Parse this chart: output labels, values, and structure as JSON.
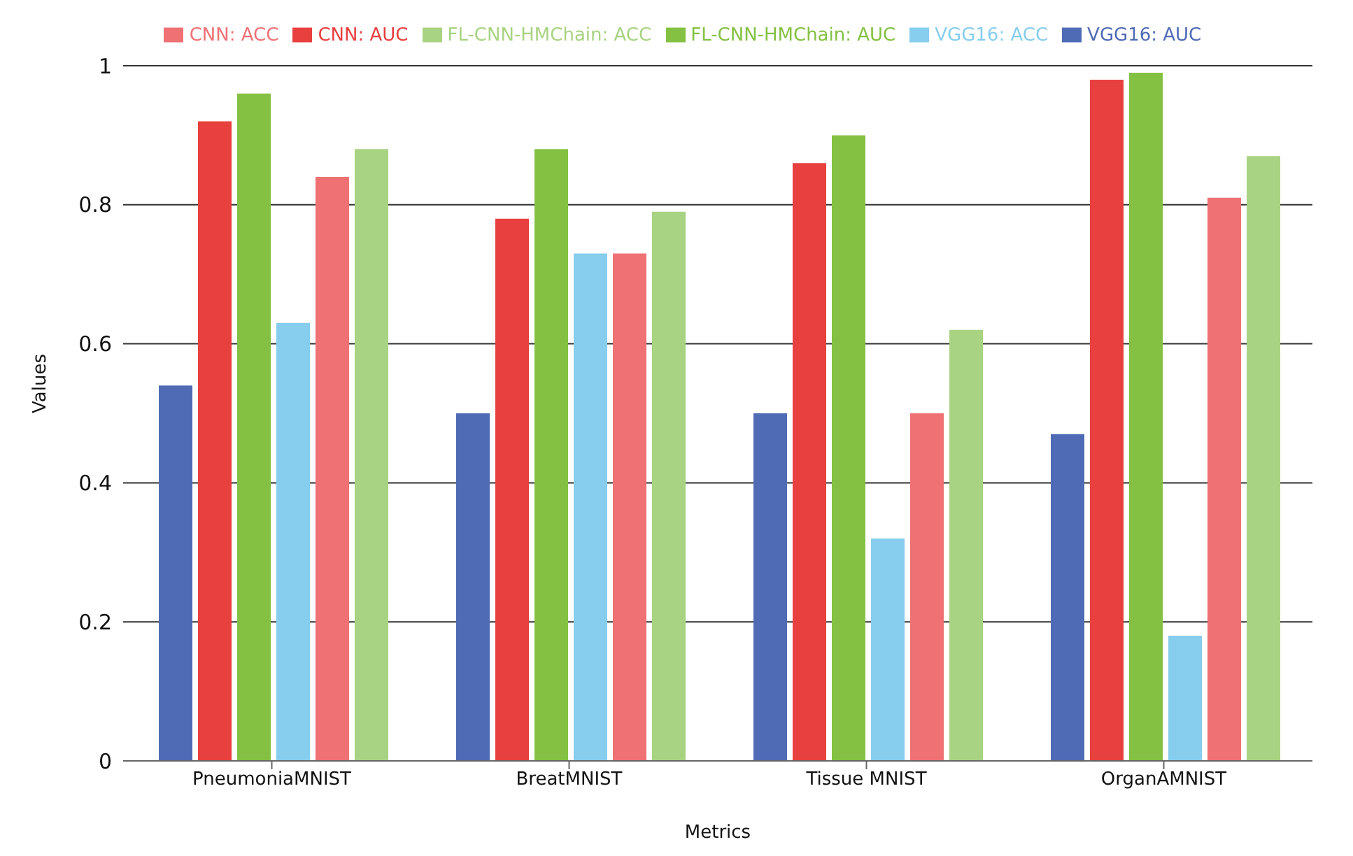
{
  "chart_data": {
    "type": "bar",
    "xlabel": "Metrics",
    "ylabel": "Values",
    "categories": [
      "PneumoniaMNIST",
      "BreatMNIST",
      "Tissue MNIST",
      "OrganAMNIST"
    ],
    "series": [
      {
        "name": "VGG16: AUC",
        "color": "#4f6bb5",
        "values": [
          0.54,
          0.5,
          0.5,
          0.47
        ]
      },
      {
        "name": "CNN: AUC",
        "color": "#e8403f",
        "values": [
          0.92,
          0.78,
          0.86,
          0.98
        ]
      },
      {
        "name": "FL-CNN-HMChain: AUC",
        "color": "#84c143",
        "values": [
          0.96,
          0.88,
          0.9,
          0.99
        ]
      },
      {
        "name": "VGG16: ACC",
        "color": "#87cdee",
        "values": [
          0.63,
          0.73,
          0.32,
          0.18
        ]
      },
      {
        "name": "CNN: ACC",
        "color": "#ef7174",
        "values": [
          0.84,
          0.73,
          0.5,
          0.81
        ]
      },
      {
        "name": "FL-CNN-HMChain: ACC",
        "color": "#a8d382",
        "values": [
          0.88,
          0.79,
          0.62,
          0.87
        ]
      }
    ],
    "ylim": [
      0,
      1
    ],
    "yticks": [
      0,
      0.2,
      0.4,
      0.6,
      0.8,
      1
    ],
    "grid": "y",
    "legend": "top"
  }
}
